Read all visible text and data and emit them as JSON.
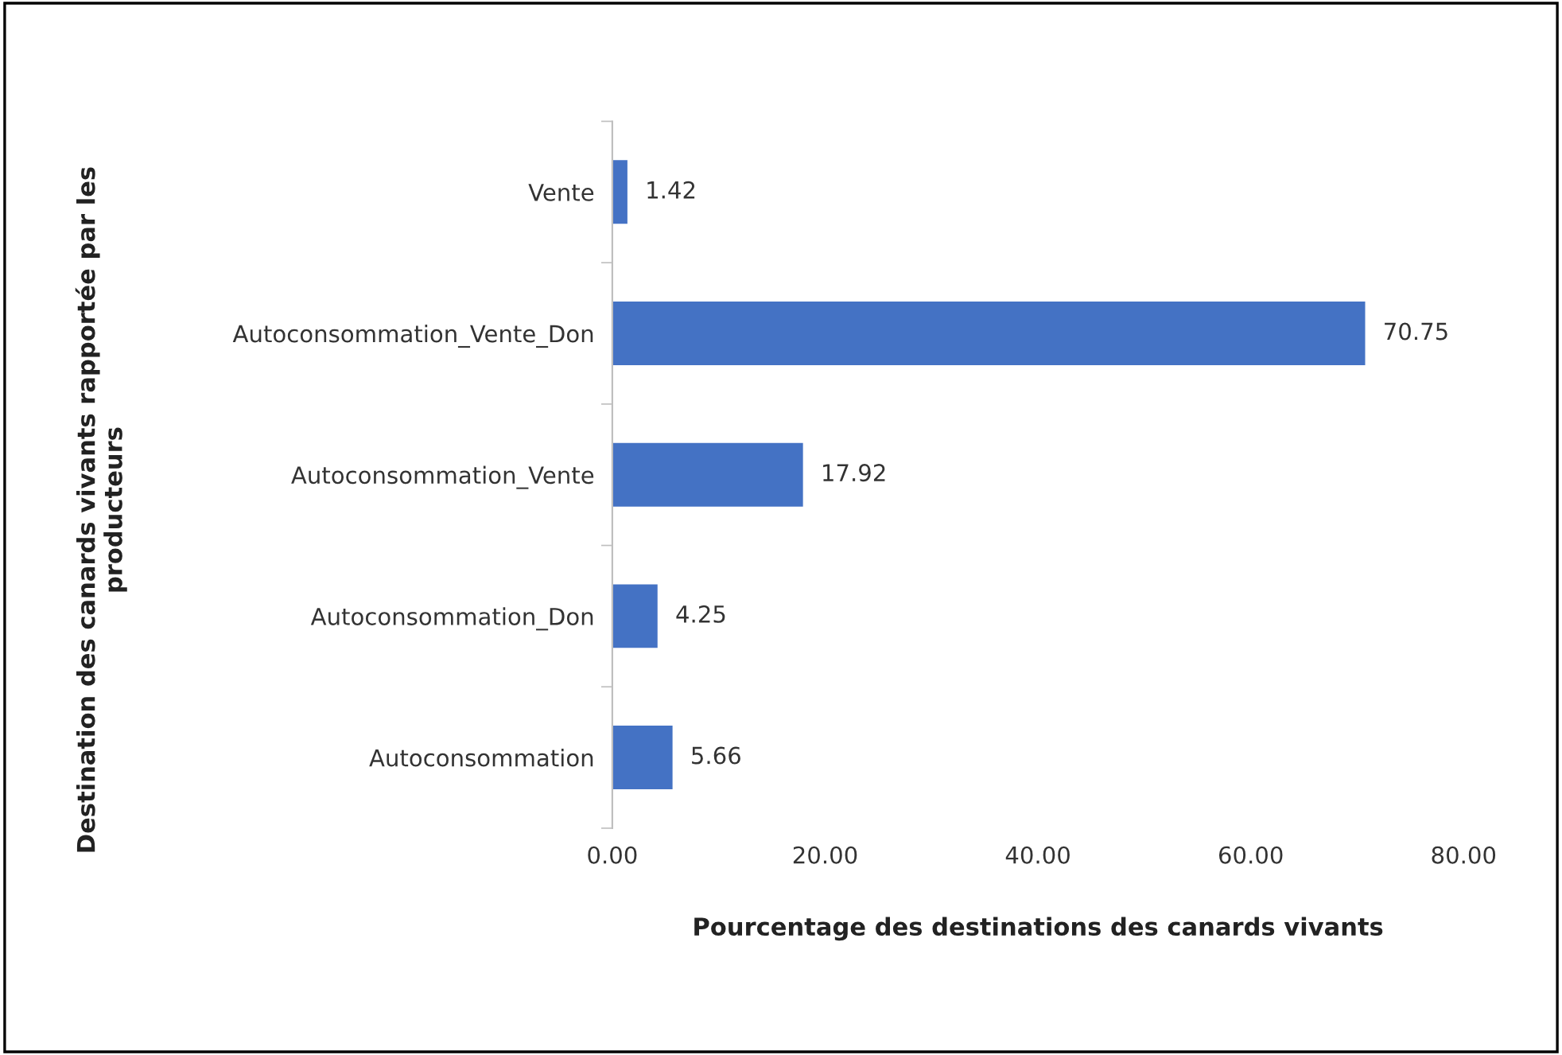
{
  "chart_data": {
    "type": "bar",
    "orientation": "horizontal",
    "ylabel": "Destination des canards vivants rapportée par les\nproducteurs",
    "xlabel": "Pourcentage des destinations des canards vivants",
    "categories": [
      "Vente",
      "Autoconsommation_Vente_Don",
      "Autoconsommation_Vente",
      "Autoconsommation_Don",
      "Autoconsommation"
    ],
    "values": [
      1.42,
      70.75,
      17.92,
      4.25,
      5.66
    ],
    "color": "#4472c4",
    "xlim": [
      0,
      80
    ],
    "xticks": [
      {
        "value": 0,
        "label": "0.00"
      },
      {
        "value": 20,
        "label": "20.00"
      },
      {
        "value": 40,
        "label": "40.00"
      },
      {
        "value": 60,
        "label": "60.00"
      },
      {
        "value": 80,
        "label": "80.00"
      }
    ],
    "data_labels": true,
    "grid": false,
    "legend": false
  }
}
